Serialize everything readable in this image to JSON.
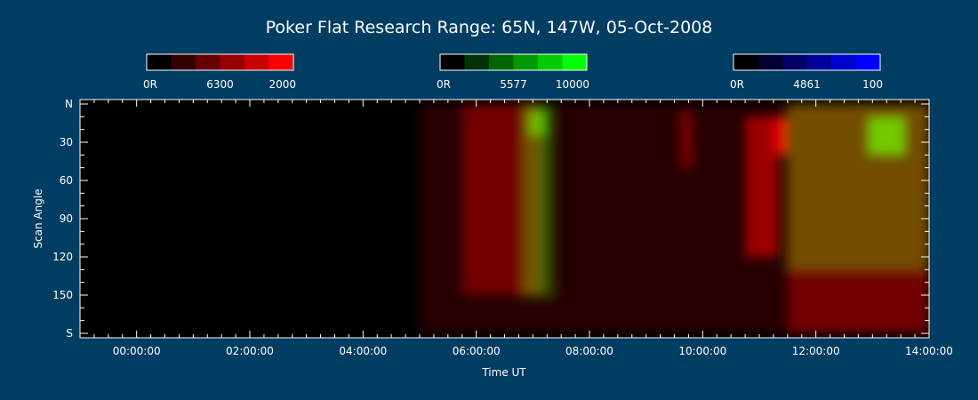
{
  "chart_data": {
    "type": "heatmap",
    "title": "Poker Flat Research Range: 65N, 147W, 05-Oct-2008",
    "xlabel": "Time UT",
    "ylabel": "Scan Angle",
    "xlim": [
      "23:00:00",
      "14:00:00"
    ],
    "ylim": [
      180,
      0
    ],
    "x_ticks": [
      "00:00:00",
      "02:00:00",
      "04:00:00",
      "06:00:00",
      "08:00:00",
      "10:00:00",
      "12:00:00",
      "14:00:00"
    ],
    "y_ticks": [
      "N",
      "30",
      "60",
      "90",
      "120",
      "150",
      "S"
    ],
    "colorbars": [
      {
        "channel": "6300",
        "min_label": "0R",
        "max_label": "2000",
        "color": "#ff0000",
        "steps": [
          "#000000",
          "#330000",
          "#660000",
          "#990000",
          "#cc0000",
          "#ff0000"
        ]
      },
      {
        "channel": "5577",
        "min_label": "0R",
        "max_label": "10000",
        "color": "#00ff00",
        "steps": [
          "#000000",
          "#003300",
          "#006600",
          "#009900",
          "#00cc00",
          "#00ff00"
        ]
      },
      {
        "channel": "4861",
        "min_label": "0R",
        "max_label": "100",
        "color": "#0000ff",
        "steps": [
          "#000000",
          "#000033",
          "#000066",
          "#000099",
          "#0000cc",
          "#0000ff"
        ]
      }
    ],
    "background": "#003d63",
    "plot_background": "#000000",
    "features": [
      {
        "channel": "6300",
        "start": "05:00:00",
        "end": "14:00:00",
        "angle_from": 0,
        "angle_to": 180,
        "level": 0.15
      },
      {
        "channel": "6300",
        "start": "05:45:00",
        "end": "07:10:00",
        "angle_from": 0,
        "angle_to": 150,
        "level": 0.35
      },
      {
        "channel": "5577",
        "start": "06:50:00",
        "end": "07:20:00",
        "angle_from": 0,
        "angle_to": 150,
        "level": 0.35
      },
      {
        "channel": "5577",
        "start": "06:55:00",
        "end": "07:15:00",
        "angle_from": 5,
        "angle_to": 25,
        "level": 0.55
      },
      {
        "channel": "6300",
        "start": "09:35:00",
        "end": "09:50:00",
        "angle_from": 5,
        "angle_to": 50,
        "level": 0.35
      },
      {
        "channel": "6300",
        "start": "10:45:00",
        "end": "11:20:00",
        "angle_from": 10,
        "angle_to": 120,
        "level": 0.55
      },
      {
        "channel": "6300",
        "start": "11:15:00",
        "end": "11:30:00",
        "angle_from": 10,
        "angle_to": 40,
        "level": 0.85
      },
      {
        "channel": "5577",
        "start": "11:30:00",
        "end": "14:00:00",
        "angle_from": 0,
        "angle_to": 130,
        "level": 0.3
      },
      {
        "channel": "6300",
        "start": "11:30:00",
        "end": "14:00:00",
        "angle_from": 0,
        "angle_to": 180,
        "level": 0.35
      },
      {
        "channel": "5577",
        "start": "12:55:00",
        "end": "13:35:00",
        "angle_from": 10,
        "angle_to": 40,
        "level": 0.7
      }
    ]
  }
}
